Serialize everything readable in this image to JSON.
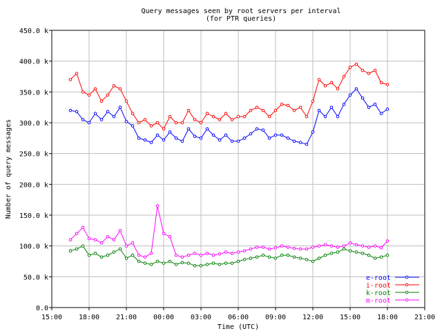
{
  "chart_data": {
    "type": "line",
    "title": "Query messages seen by root servers per interval",
    "subtitle": "(for PTR queries)",
    "xlabel": "Time (UTC)",
    "ylabel": "Number of query messages",
    "x_tick_labels": [
      "15:00",
      "18:00",
      "21:00",
      "00:00",
      "03:00",
      "06:00",
      "09:00",
      "12:00",
      "15:00",
      "18:00",
      "21:00"
    ],
    "y_tick_labels": [
      "0.0",
      "50.0 k",
      "100.0 k",
      "150.0 k",
      "200.0 k",
      "250.0 k",
      "300.0 k",
      "350.0 k",
      "400.0 k",
      "450.0 k"
    ],
    "x_hours": [
      16.5,
      17.0,
      17.5,
      18.0,
      18.5,
      19.0,
      19.5,
      20.0,
      20.5,
      21.0,
      21.5,
      22.0,
      22.5,
      23.0,
      23.5,
      24.0,
      24.5,
      25.0,
      25.5,
      26.0,
      26.5,
      27.0,
      27.5,
      28.0,
      28.5,
      29.0,
      29.5,
      30.0,
      30.5,
      31.0,
      31.5,
      32.0,
      32.5,
      33.0,
      33.5,
      34.0,
      34.5,
      35.0,
      35.5,
      36.0,
      36.5,
      37.0,
      37.5,
      38.0,
      38.5,
      39.0,
      39.5,
      40.0,
      40.5,
      41.0,
      41.5,
      42.0
    ],
    "ylim": [
      0,
      450000
    ],
    "grid": true,
    "legend_position": "bottom-right",
    "series": [
      {
        "name": "e-root",
        "color": "#0000ff",
        "values": [
          320000,
          318000,
          305000,
          300000,
          315000,
          305000,
          318000,
          310000,
          325000,
          302000,
          295000,
          275000,
          272000,
          268000,
          280000,
          272000,
          285000,
          275000,
          270000,
          290000,
          278000,
          275000,
          290000,
          280000,
          272000,
          280000,
          270000,
          270000,
          275000,
          282000,
          290000,
          288000,
          275000,
          280000,
          280000,
          275000,
          270000,
          268000,
          265000,
          285000,
          320000,
          310000,
          325000,
          310000,
          330000,
          345000,
          355000,
          340000,
          325000,
          330000,
          315000,
          322000
        ]
      },
      {
        "name": "i-root",
        "color": "#ff0000",
        "values": [
          370000,
          380000,
          350000,
          345000,
          355000,
          335000,
          345000,
          360000,
          355000,
          335000,
          315000,
          300000,
          305000,
          295000,
          300000,
          290000,
          310000,
          300000,
          300000,
          320000,
          305000,
          300000,
          315000,
          310000,
          305000,
          315000,
          305000,
          310000,
          310000,
          320000,
          325000,
          320000,
          310000,
          320000,
          330000,
          328000,
          320000,
          325000,
          310000,
          335000,
          370000,
          360000,
          365000,
          355000,
          375000,
          390000,
          395000,
          385000,
          380000,
          385000,
          365000,
          362000
        ]
      },
      {
        "name": "k-root",
        "color": "#008000",
        "values": [
          92000,
          95000,
          100000,
          85000,
          88000,
          82000,
          85000,
          90000,
          95000,
          80000,
          85000,
          75000,
          72000,
          70000,
          75000,
          72000,
          75000,
          70000,
          73000,
          72000,
          68000,
          68000,
          70000,
          72000,
          70000,
          72000,
          72000,
          75000,
          78000,
          80000,
          82000,
          85000,
          82000,
          80000,
          85000,
          85000,
          82000,
          80000,
          78000,
          75000,
          80000,
          85000,
          88000,
          90000,
          95000,
          92000,
          90000,
          88000,
          85000,
          80000,
          82000,
          85000
        ]
      },
      {
        "name": "m-root",
        "color": "#ff00ff",
        "values": [
          110000,
          120000,
          130000,
          112000,
          110000,
          105000,
          115000,
          110000,
          125000,
          100000,
          105000,
          85000,
          82000,
          88000,
          165000,
          120000,
          115000,
          85000,
          82000,
          85000,
          88000,
          85000,
          88000,
          85000,
          87000,
          90000,
          88000,
          90000,
          92000,
          95000,
          98000,
          98000,
          95000,
          97000,
          100000,
          98000,
          96000,
          95000,
          95000,
          98000,
          100000,
          102000,
          100000,
          98000,
          100000,
          105000,
          102000,
          100000,
          98000,
          100000,
          97000,
          108000
        ]
      }
    ]
  }
}
